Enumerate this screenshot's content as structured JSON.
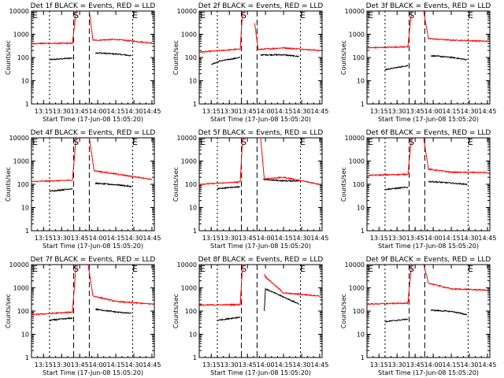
{
  "colors": {
    "events": "#000000",
    "lld": "#ff0000",
    "axis": "#000000",
    "background": "#ffffff"
  },
  "shared": {
    "ylabel": "Counts/sec",
    "xlabel": "Start Time (17-Jun-08 15:05:20)",
    "x_tick_labels": [
      "13:15",
      "13:30",
      "13:45",
      "14:00",
      "14:15",
      "14:30",
      "14:45"
    ],
    "y_tick_labels": [
      "1",
      "10",
      "100",
      "1000",
      "10000"
    ],
    "event_markers": [
      "E",
      "S",
      "E"
    ]
  },
  "chart_data": [
    {
      "type": "line",
      "title": "Det 1f BLACK = Events, RED = LLD",
      "ylim": [
        1,
        10000
      ],
      "yscale": "log",
      "xlim": [
        "13:05",
        "14:47"
      ],
      "series": [
        {
          "name": "Events",
          "color": "#000000",
          "segments": [
            {
              "x": [
                "13:20",
                "13:39"
              ],
              "values": [
                80,
                95
              ]
            },
            {
              "x": [
                "13:58",
                "14:16",
                "14:28"
              ],
              "values": [
                160,
                140,
                120
              ]
            }
          ]
        },
        {
          "name": "LLD",
          "color": "#ff0000",
          "segments": [
            {
              "x": [
                "13:05",
                "13:39",
                "13:42"
              ],
              "values": [
                400,
                410,
                10000
              ]
            },
            {
              "x": [
                "13:53",
                "13:56",
                "14:15",
                "14:45"
              ],
              "values": [
                10000,
                550,
                600,
                420
              ]
            }
          ]
        }
      ]
    },
    {
      "type": "line",
      "title": "Det 2f BLACK = Events, RED = LLD",
      "ylim": [
        1,
        10000
      ],
      "yscale": "log",
      "xlim": [
        "13:05",
        "14:47"
      ],
      "series": [
        {
          "name": "Events",
          "color": "#000000",
          "segments": [
            {
              "x": [
                "13:15",
                "13:22",
                "13:39"
              ],
              "values": [
                50,
                70,
                100
              ]
            },
            {
              "x": [
                "13:56",
                "14:15",
                "14:28"
              ],
              "values": [
                130,
                130,
                110
              ]
            }
          ]
        },
        {
          "name": "LLD",
          "color": "#ff0000",
          "segments": [
            {
              "x": [
                "13:05",
                "13:39",
                "13:41"
              ],
              "values": [
                170,
                230,
                10000
              ]
            },
            {
              "x": [
                "13:51",
                "13:54",
                "14:15",
                "14:45"
              ],
              "values": [
                3000,
                220,
                260,
                200
              ]
            }
          ]
        }
      ]
    },
    {
      "type": "line",
      "title": "Det 3f BLACK = Events, RED = LLD",
      "ylim": [
        1,
        10000
      ],
      "yscale": "log",
      "xlim": [
        "13:05",
        "14:47"
      ],
      "series": [
        {
          "name": "Events",
          "color": "#000000",
          "segments": [
            {
              "x": [
                "13:20",
                "13:39"
              ],
              "values": [
                30,
                45
              ]
            },
            {
              "x": [
                "13:58",
                "14:16",
                "14:28"
              ],
              "values": [
                120,
                100,
                80
              ]
            }
          ]
        },
        {
          "name": "LLD",
          "color": "#ff0000",
          "segments": [
            {
              "x": [
                "13:05",
                "13:39",
                "13:42"
              ],
              "values": [
                260,
                290,
                10000
              ]
            },
            {
              "x": [
                "13:52",
                "13:56",
                "14:15",
                "14:45"
              ],
              "values": [
                10000,
                650,
                560,
                500
              ]
            }
          ]
        }
      ]
    },
    {
      "type": "line",
      "title": "Det 4f BLACK = Events, RED = LLD",
      "ylim": [
        1,
        10000
      ],
      "yscale": "log",
      "xlim": [
        "13:05",
        "14:47"
      ],
      "series": [
        {
          "name": "Events",
          "color": "#000000",
          "segments": [
            {
              "x": [
                "13:20",
                "13:39"
              ],
              "values": [
                50,
                65
              ]
            },
            {
              "x": [
                "13:58",
                "14:16",
                "14:28"
              ],
              "values": [
                110,
                95,
                80
              ]
            }
          ]
        },
        {
          "name": "LLD",
          "color": "#ff0000",
          "segments": [
            {
              "x": [
                "13:05",
                "13:39",
                "13:42"
              ],
              "values": [
                130,
                150,
                10000
              ]
            },
            {
              "x": [
                "13:53",
                "13:57",
                "14:15",
                "14:45"
              ],
              "values": [
                10000,
                380,
                280,
                160
              ]
            }
          ]
        }
      ]
    },
    {
      "type": "line",
      "title": "Det 5f BLACK = Events, RED = LLD",
      "ylim": [
        1,
        10000
      ],
      "yscale": "log",
      "xlim": [
        "13:05",
        "14:47"
      ],
      "series": [
        {
          "name": "Events",
          "color": "#000000",
          "segments": [
            {
              "x": [
                "13:20",
                "13:39"
              ],
              "values": [
                65,
                80
              ]
            },
            {
              "x": [
                "13:58",
                "14:16",
                "14:28"
              ],
              "values": [
                160,
                140,
                140
              ]
            }
          ]
        },
        {
          "name": "LLD",
          "color": "#ff0000",
          "segments": [
            {
              "x": [
                "13:05",
                "13:39",
                "13:41"
              ],
              "values": [
                100,
                125,
                10000
              ]
            },
            {
              "x": [
                "13:56",
                "13:59",
                "14:15",
                "14:45"
              ],
              "values": [
                10000,
                170,
                200,
                100
              ]
            }
          ]
        }
      ]
    },
    {
      "type": "line",
      "title": "Det 6f BLACK = Events, RED = LLD",
      "ylim": [
        1,
        10000
      ],
      "yscale": "log",
      "xlim": [
        "13:05",
        "14:47"
      ],
      "series": [
        {
          "name": "Events",
          "color": "#000000",
          "segments": [
            {
              "x": [
                "13:20",
                "13:39"
              ],
              "values": [
                60,
                75
              ]
            },
            {
              "x": [
                "13:56",
                "13:59",
                "14:28"
              ],
              "values": [
                130,
                130,
                100
              ]
            }
          ]
        },
        {
          "name": "LLD",
          "color": "#ff0000",
          "segments": [
            {
              "x": [
                "13:05",
                "13:39",
                "13:42"
              ],
              "values": [
                240,
                270,
                10000
              ]
            },
            {
              "x": [
                "13:52",
                "13:56",
                "14:15",
                "14:45"
              ],
              "values": [
                10000,
                450,
                330,
                320
              ]
            }
          ]
        }
      ]
    },
    {
      "type": "line",
      "title": "Det 7f BLACK = Events, RED = LLD",
      "ylim": [
        1,
        10000
      ],
      "yscale": "log",
      "xlim": [
        "13:05",
        "14:47"
      ],
      "series": [
        {
          "name": "Events",
          "color": "#000000",
          "segments": [
            {
              "x": [
                "13:20",
                "13:39"
              ],
              "values": [
                40,
                50
              ]
            },
            {
              "x": [
                "13:58",
                "14:16",
                "14:28"
              ],
              "values": [
                120,
                90,
                80
              ]
            }
          ]
        },
        {
          "name": "LLD",
          "color": "#ff0000",
          "segments": [
            {
              "x": [
                "13:05",
                "13:39",
                "13:42"
              ],
              "values": [
                70,
                90,
                10000
              ]
            },
            {
              "x": [
                "13:52",
                "13:56",
                "14:15",
                "14:45"
              ],
              "values": [
                10000,
                450,
                260,
                200
              ]
            }
          ]
        }
      ]
    },
    {
      "type": "line",
      "title": "Det 8f BLACK = Events, RED = LLD",
      "ylim": [
        1,
        10000
      ],
      "yscale": "log",
      "xlim": [
        "13:05",
        "14:47"
      ],
      "series": [
        {
          "name": "Events",
          "color": "#000000",
          "segments": [
            {
              "x": [
                "13:20",
                "13:39"
              ],
              "values": [
                40,
                55
              ]
            },
            {
              "x": [
                "13:59",
                "14:00",
                "14:28"
              ],
              "values": [
                100,
                900,
                200
              ]
            }
          ]
        },
        {
          "name": "LLD",
          "color": "#ff0000",
          "segments": [
            {
              "x": [
                "13:05",
                "13:39",
                "13:41"
              ],
              "values": [
                180,
                190,
                10000
              ]
            },
            {
              "x": [
                "13:59",
                "14:00",
                "14:15",
                "14:45"
              ],
              "values": [
                4000,
                3000,
                600,
                450
              ]
            }
          ]
        }
      ]
    },
    {
      "type": "line",
      "title": "Det 9f BLACK = Events, RED = LLD",
      "ylim": [
        1,
        10000
      ],
      "yscale": "log",
      "xlim": [
        "13:05",
        "14:47"
      ],
      "series": [
        {
          "name": "Events",
          "color": "#000000",
          "segments": [
            {
              "x": [
                "13:20",
                "13:39"
              ],
              "values": [
                35,
                45
              ]
            },
            {
              "x": [
                "13:58",
                "14:16",
                "14:28"
              ],
              "values": [
                110,
                95,
                70
              ]
            }
          ]
        },
        {
          "name": "LLD",
          "color": "#ff0000",
          "segments": [
            {
              "x": [
                "13:05",
                "13:39",
                "13:42"
              ],
              "values": [
                200,
                220,
                10000
              ]
            },
            {
              "x": [
                "13:52",
                "13:56",
                "14:15",
                "14:45"
              ],
              "values": [
                10000,
                1600,
                900,
                800
              ]
            }
          ]
        }
      ]
    }
  ]
}
